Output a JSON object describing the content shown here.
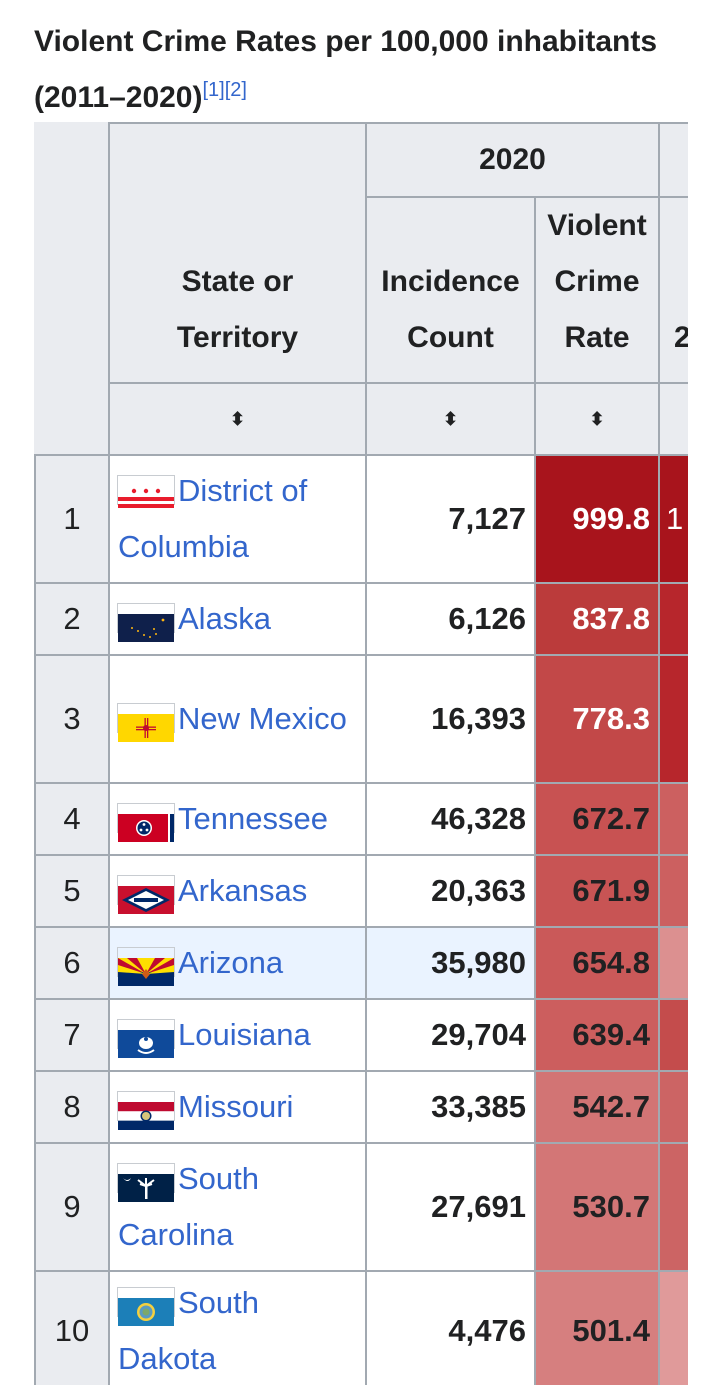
{
  "caption": {
    "title": "Violent Crime Rates per 100,000 inhabitants (2011–2020)",
    "ref1": "[1]",
    "ref2": "[2]"
  },
  "header": {
    "year_group": "2020",
    "state_col": "State or Territory",
    "count_col": "Incidence Count",
    "rate_col": "Violent Crime Rate",
    "next_col_partial": "2",
    "sort_icon": "⬍"
  },
  "rows": [
    {
      "rank": "1",
      "state": "District of Columbia",
      "count": "7,127",
      "rate": "999.8",
      "next": "1",
      "flag": "dc-flag-icon",
      "rate_color": "#a8141c",
      "next_color": "#a8141c",
      "rate_text_color": "#ffffff"
    },
    {
      "rank": "2",
      "state": "Alaska",
      "count": "6,126",
      "rate": "837.8",
      "next": "",
      "flag": "alaska-flag-icon",
      "rate_color": "#bb3b3b",
      "next_color": "#b7262c",
      "rate_text_color": "#ffffff"
    },
    {
      "rank": "3",
      "state": "New Mexico",
      "count": "16,393",
      "rate": "778.3",
      "next": "",
      "flag": "new-mexico-flag-icon",
      "rate_color": "#c24848",
      "next_color": "#b7262c",
      "rate_text_color": "#ffffff"
    },
    {
      "rank": "4",
      "state": "Tennessee",
      "count": "46,328",
      "rate": "672.7",
      "next": "",
      "flag": "tennessee-flag-icon",
      "rate_color": "#c85252",
      "next_color": "#cc6060",
      "rate_text_color": "#202122"
    },
    {
      "rank": "5",
      "state": "Arkansas",
      "count": "20,363",
      "rate": "671.9",
      "next": "",
      "flag": "arkansas-flag-icon",
      "rate_color": "#c85454",
      "next_color": "#cc6060",
      "rate_text_color": "#202122"
    },
    {
      "rank": "6",
      "state": "Arizona",
      "count": "35,980",
      "rate": "654.8",
      "next": "",
      "flag": "arizona-flag-icon",
      "rate_color": "#ca5959",
      "next_color": "#dc9090",
      "rate_text_color": "#202122"
    },
    {
      "rank": "7",
      "state": "Louisiana",
      "count": "29,704",
      "rate": "639.4",
      "next": "",
      "flag": "louisiana-flag-icon",
      "rate_color": "#cc5e5e",
      "next_color": "#c44c4c",
      "rate_text_color": "#202122"
    },
    {
      "rank": "8",
      "state": "Missouri",
      "count": "33,385",
      "rate": "542.7",
      "next": "",
      "flag": "missouri-flag-icon",
      "rate_color": "#d27474",
      "next_color": "#cc6464",
      "rate_text_color": "#202122"
    },
    {
      "rank": "9",
      "state": "South Carolina",
      "count": "27,691",
      "rate": "530.7",
      "next": "",
      "flag": "south-carolina-flag-icon",
      "rate_color": "#d37676",
      "next_color": "#cc6464",
      "rate_text_color": "#202122"
    },
    {
      "rank": "10",
      "state": "South Dakota",
      "count": "4,476",
      "rate": "501.4",
      "next": "",
      "flag": "south-dakota-flag-icon",
      "rate_color": "#d67f7f",
      "next_color": "#e09a9a",
      "rate_text_color": "#202122"
    }
  ]
}
